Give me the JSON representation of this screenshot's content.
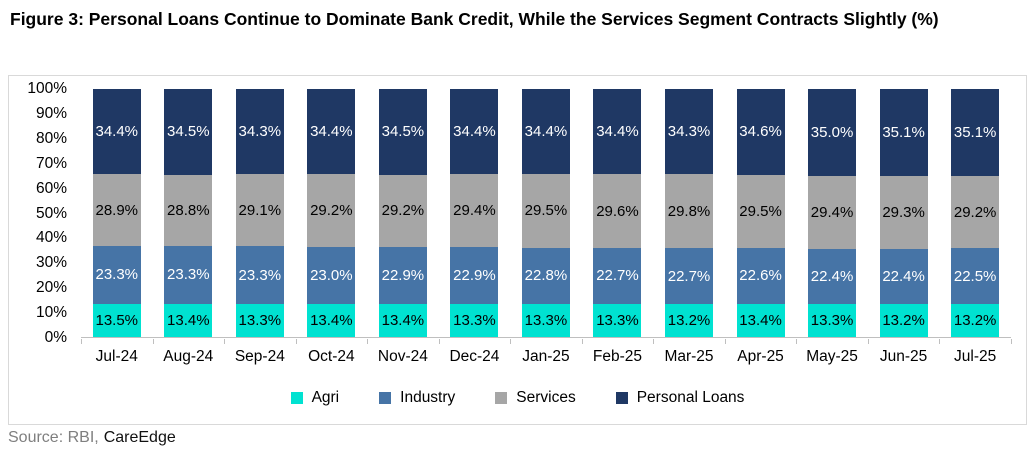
{
  "title": "Figure 3: Personal Loans Continue to Dominate Bank Credit, While the Services Segment Contracts Slightly (%)",
  "source": {
    "prefix": "Source: RBI,",
    "org": "CareEdge"
  },
  "chart_data": {
    "type": "bar",
    "stacked": true,
    "title": "Figure 3: Personal Loans Continue to Dominate Bank Credit, While the Services Segment Contracts Slightly (%)",
    "xlabel": "",
    "ylabel": "",
    "ylim": [
      0,
      100
    ],
    "gridlines": false,
    "legend_position": "bottom",
    "value_suffix": "%",
    "y_tick_labels": [
      "0%",
      "10%",
      "20%",
      "30%",
      "40%",
      "50%",
      "60%",
      "70%",
      "80%",
      "90%",
      "100%"
    ],
    "y_axis": {
      "min": 0,
      "max": 100,
      "step": 10,
      "tick_suffix": "%"
    },
    "categories": [
      "Jul-24",
      "Aug-24",
      "Sep-24",
      "Oct-24",
      "Nov-24",
      "Dec-24",
      "Jan-25",
      "Feb-25",
      "Mar-25",
      "Apr-25",
      "May-25",
      "Jun-25",
      "Jul-25"
    ],
    "series": [
      {
        "name": "Agri",
        "color": "#00E2D1",
        "label_color": "#000000",
        "values": [
          13.5,
          13.4,
          13.3,
          13.4,
          13.4,
          13.3,
          13.3,
          13.3,
          13.2,
          13.4,
          13.3,
          13.2,
          13.2
        ]
      },
      {
        "name": "Industry",
        "color": "#4674A6",
        "label_color": "#FFFFFF",
        "values": [
          23.3,
          23.3,
          23.3,
          23.0,
          22.9,
          22.9,
          22.8,
          22.7,
          22.7,
          22.6,
          22.4,
          22.4,
          22.5
        ]
      },
      {
        "name": "Services",
        "color": "#A6A6A6",
        "label_color": "#000000",
        "values": [
          28.9,
          28.8,
          29.1,
          29.2,
          29.2,
          29.4,
          29.5,
          29.6,
          29.8,
          29.5,
          29.4,
          29.3,
          29.2
        ]
      },
      {
        "name": "Personal Loans",
        "color": "#1F3864",
        "label_color": "#FFFFFF",
        "values": [
          34.4,
          34.5,
          34.3,
          34.4,
          34.5,
          34.4,
          34.4,
          34.4,
          34.3,
          34.6,
          35.0,
          35.1,
          35.1
        ]
      }
    ]
  }
}
